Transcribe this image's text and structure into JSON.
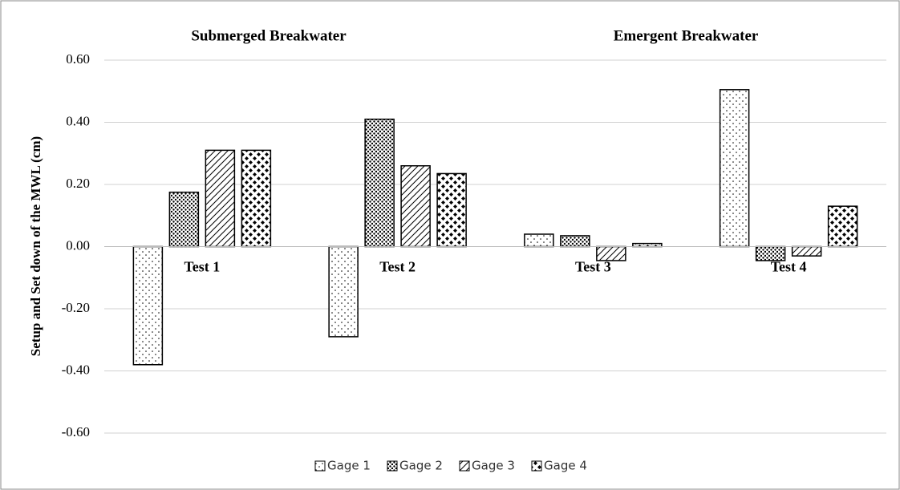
{
  "chart_data": {
    "type": "bar",
    "annotations": [
      "Submerged Breakwater",
      "Emergent Breakwater"
    ],
    "y_label": "Setup and Set down of the MWL (cm)",
    "categories": [
      "Test 1",
      "Test 2",
      "Test 3",
      "Test 4"
    ],
    "series": [
      {
        "name": "Gage 1",
        "color": "#000000",
        "pattern": "sparse-dots",
        "values": [
          -0.38,
          -0.29,
          0.04,
          0.505
        ]
      },
      {
        "name": "Gage 2",
        "color": "#000000",
        "pattern": "dense-dots",
        "values": [
          0.175,
          0.41,
          0.035,
          -0.045
        ]
      },
      {
        "name": "Gage 3",
        "color": "#000000",
        "pattern": "hatch",
        "values": [
          0.31,
          0.26,
          -0.045,
          -0.03
        ]
      },
      {
        "name": "Gage 4",
        "color": "#000000",
        "pattern": "diamonds",
        "values": [
          0.31,
          0.235,
          0.01,
          0.13
        ]
      }
    ],
    "ylim": [
      -0.6,
      0.6
    ],
    "yticks": [
      {
        "value": -0.6,
        "label": "-0.60"
      },
      {
        "value": -0.4,
        "label": "-0.40"
      },
      {
        "value": -0.2,
        "label": "-0.20"
      },
      {
        "value": 0,
        "label": "0.00"
      },
      {
        "value": 0.2,
        "label": "0.20"
      },
      {
        "value": 0.4,
        "label": "0.40"
      },
      {
        "value": 0.6,
        "label": "0.60"
      }
    ],
    "grid": true,
    "legend": "bottom"
  }
}
